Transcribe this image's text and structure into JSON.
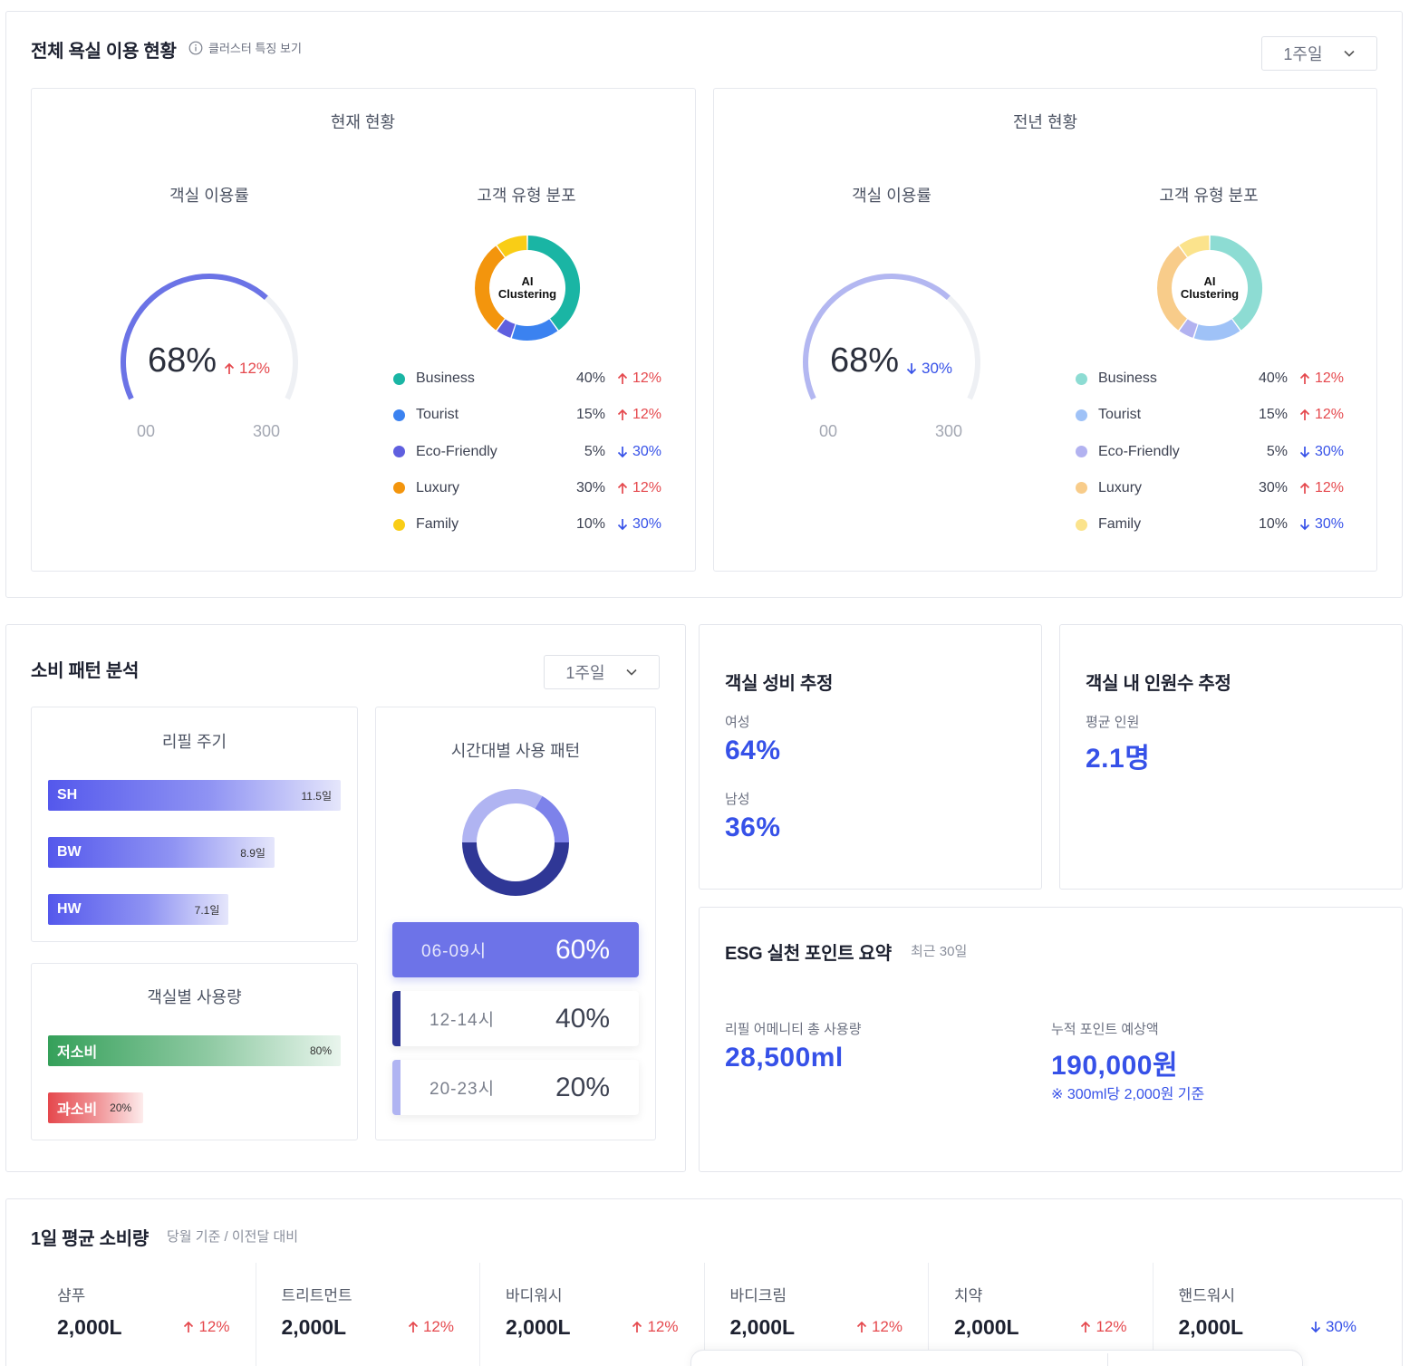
{
  "usage": {
    "title": "전체 욕실 이용 현황",
    "cluster_link": "클러스터 특징 보기",
    "period": "1주일",
    "panels": [
      {
        "heading": "현재 현황",
        "occupancy_title": "객실 이용률",
        "occupancy_value": 68,
        "occupancy_label": "68%",
        "occupancy_delta": "12%",
        "occupancy_dir": "up",
        "tick_min": "00",
        "tick_max": "300",
        "dist_title": "고객 유형 분포",
        "donut_center_1": "AI",
        "donut_center_2": "Clustering",
        "gauge_color": "#6b73e6",
        "segments": [
          {
            "name": "Business",
            "pct": "40%",
            "delta": "12%",
            "dir": "up",
            "color": "#1ab5a4",
            "value": 40
          },
          {
            "name": "Tourist",
            "pct": "15%",
            "delta": "12%",
            "dir": "up",
            "color": "#3b82f0",
            "value": 15
          },
          {
            "name": "Eco-Friendly",
            "pct": "5%",
            "delta": "30%",
            "dir": "down",
            "color": "#5f5fdf",
            "value": 5
          },
          {
            "name": "Luxury",
            "pct": "30%",
            "delta": "12%",
            "dir": "up",
            "color": "#f3950d",
            "value": 30
          },
          {
            "name": "Family",
            "pct": "10%",
            "delta": "30%",
            "dir": "down",
            "color": "#f9cd16",
            "value": 10
          }
        ]
      },
      {
        "heading": "전년 현황",
        "occupancy_title": "객실 이용률",
        "occupancy_value": 68,
        "occupancy_label": "68%",
        "occupancy_delta": "30%",
        "occupancy_dir": "down",
        "tick_min": "00",
        "tick_max": "300",
        "dist_title": "고객 유형 분포",
        "donut_center_1": "AI",
        "donut_center_2": "Clustering",
        "gauge_color": "#b3b7f1",
        "segments": [
          {
            "name": "Business",
            "pct": "40%",
            "delta": "12%",
            "dir": "up",
            "color": "#8ddcd3",
            "value": 40
          },
          {
            "name": "Tourist",
            "pct": "15%",
            "delta": "12%",
            "dir": "up",
            "color": "#9fc2f7",
            "value": 15
          },
          {
            "name": "Eco-Friendly",
            "pct": "5%",
            "delta": "30%",
            "dir": "down",
            "color": "#b2b2f0",
            "value": 5
          },
          {
            "name": "Luxury",
            "pct": "30%",
            "delta": "12%",
            "dir": "up",
            "color": "#f8cc8a",
            "value": 30
          },
          {
            "name": "Family",
            "pct": "10%",
            "delta": "30%",
            "dir": "down",
            "color": "#fbe38c",
            "value": 10
          }
        ]
      }
    ]
  },
  "consumption": {
    "title": "소비 패턴 분석",
    "period": "1주일",
    "refill_title": "리필 주기",
    "refill_bars": [
      {
        "label": "SH",
        "value_text": "11.5일",
        "value": 11.5
      },
      {
        "label": "BW",
        "value_text": "8.9일",
        "value": 8.9
      },
      {
        "label": "HW",
        "value_text": "7.1일",
        "value": 7.1
      }
    ],
    "room_usage_title": "객실별 사용량",
    "room_bars": [
      {
        "label": "저소비",
        "value_text": "80%",
        "value": 80,
        "color": "#35a05a"
      },
      {
        "label": "과소비",
        "value_text": "20%",
        "value": 20,
        "color": "#e5484d"
      }
    ],
    "time_title": "시간대별 사용 패턴",
    "time_slots": [
      {
        "range": "06-09시",
        "pct": "60%",
        "value": 60
      },
      {
        "range": "12-14시",
        "pct": "40%",
        "value": 40
      },
      {
        "range": "20-23시",
        "pct": "20%",
        "value": 20
      }
    ]
  },
  "gender": {
    "title": "객실 성비 추정",
    "female_label": "여성",
    "female_value": "64%",
    "male_label": "남성",
    "male_value": "36%"
  },
  "occupants": {
    "title": "객실 내 인원수 추정",
    "avg_label": "평균 인원",
    "avg_value": "2.1명"
  },
  "esg": {
    "title": "ESG 실천 포인트 요약",
    "period": "최근 30일",
    "refill_label": "리필 어메니티 총 사용량",
    "refill_value": "28,500ml",
    "points_label": "누적 포인트 예상액",
    "points_value": "190,000원",
    "points_note": "※ 300ml당 2,000원 기준"
  },
  "daily": {
    "title": "1일 평균 소비량",
    "subtitle": "당월 기준 / 이전달 대비",
    "items": [
      {
        "name": "샴푸",
        "value": "2,000L",
        "delta": "12%",
        "dir": "up"
      },
      {
        "name": "트리트먼트",
        "value": "2,000L",
        "delta": "12%",
        "dir": "up"
      },
      {
        "name": "바디워시",
        "value": "2,000L",
        "delta": "12%",
        "dir": "up"
      },
      {
        "name": "바디크림",
        "value": "2,000L",
        "delta": "12%",
        "dir": "up"
      },
      {
        "name": "치약",
        "value": "2,000L",
        "delta": "12%",
        "dir": "up"
      },
      {
        "name": "핸드워시",
        "value": "2,000L",
        "delta": "30%",
        "dir": "down"
      }
    ]
  },
  "icons": {
    "info": "info-icon",
    "dropdown": "chevron-down-icon",
    "up": "arrow-up-icon",
    "down": "arrow-down-icon"
  }
}
